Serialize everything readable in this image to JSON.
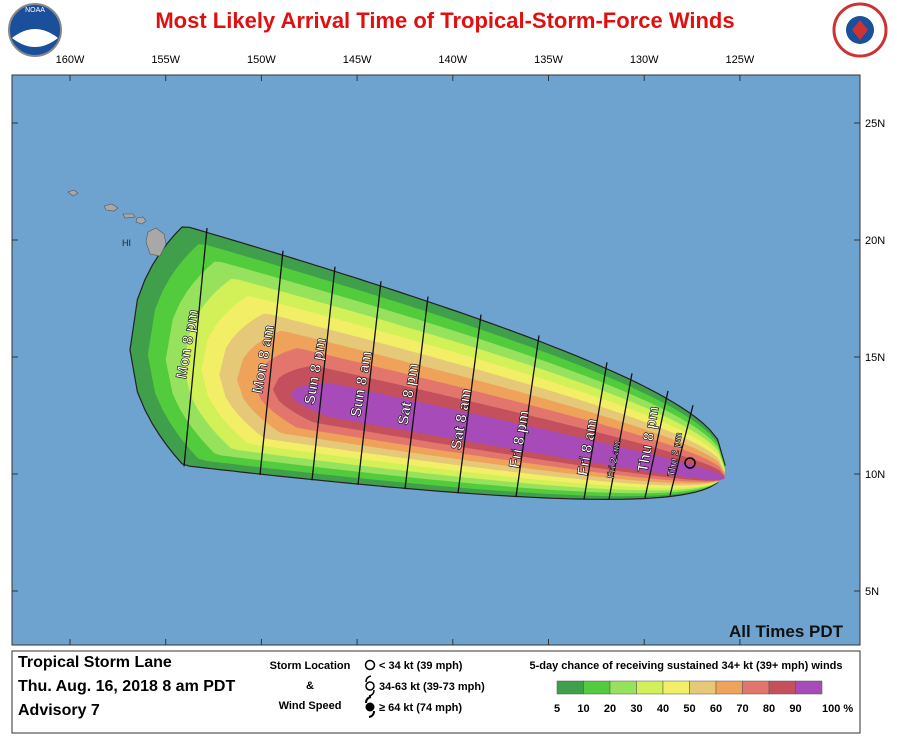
{
  "header": {
    "title": "Most Likely Arrival Time of Tropical-Storm-Force Winds",
    "noaa_logo": "NOAA"
  },
  "map": {
    "longitudes": [
      "160W",
      "155W",
      "150W",
      "145W",
      "140W",
      "135W",
      "130W",
      "125W"
    ],
    "latitudes": [
      "25N",
      "20N",
      "15N",
      "10N",
      "5N"
    ],
    "island_label": "HI",
    "arrival_times": [
      "Mon 8 pm",
      "Mon 8 am",
      "Sun 8 pm",
      "Sun 8 am",
      "Sat 8 pm",
      "Sat 8 am",
      "Fri 8 pm",
      "Fri 8 am",
      "Fri 2 am",
      "Thu 8 pm",
      "Thu 2 pm"
    ],
    "time_zone_note": "All Times PDT"
  },
  "footer": {
    "storm": [
      "Tropical Storm Lane",
      "Thu. Aug. 16, 2018  8 am PDT",
      "Advisory 7"
    ],
    "symbol_caption": [
      "Storm Location",
      "&",
      "Wind Speed"
    ],
    "symbols": [
      "< 34 kt (39 mph)",
      "34-63 kt (39-73 mph)",
      "≥ 64 kt (74 mph)"
    ],
    "legend": {
      "title": "5-day chance of receiving sustained 34+ kt (39+ mph) winds",
      "labels": [
        "5",
        "10",
        "20",
        "30",
        "40",
        "50",
        "60",
        "70",
        "80",
        "90",
        "100 %"
      ],
      "colors": [
        "#3f9f4a",
        "#52cc3c",
        "#96e25c",
        "#d2f058",
        "#f2ee66",
        "#e6c879",
        "#eea25a",
        "#e2766c",
        "#c4505e",
        "#a64bb8"
      ]
    }
  }
}
